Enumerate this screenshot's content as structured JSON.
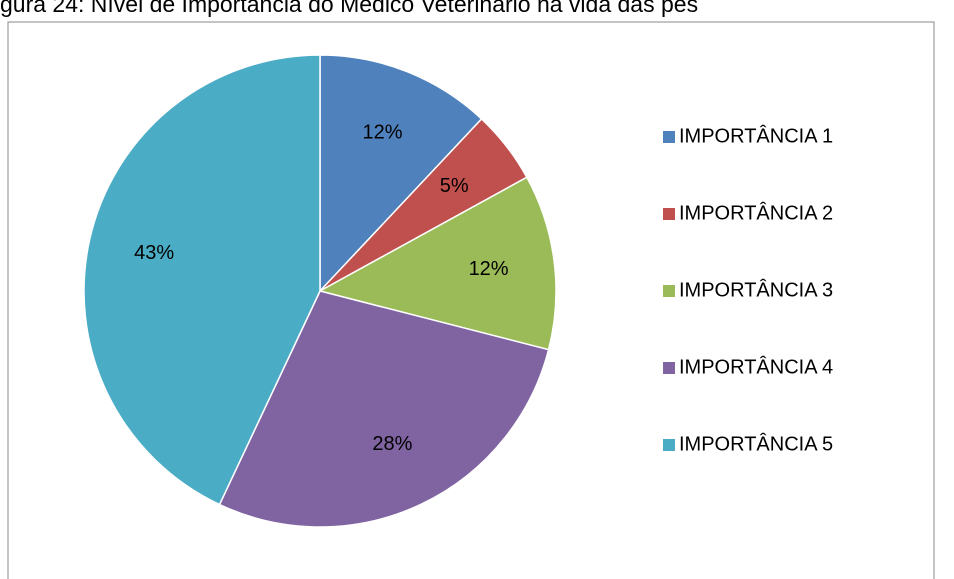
{
  "chart_data": {
    "type": "pie",
    "title": "gura 24: Nível de Importância do Médico Veterinário na vida das pes",
    "categories": [
      "IMPORTÂNCIA 1",
      "IMPORTÂNCIA 2",
      "IMPORTÂNCIA 3",
      "IMPORTÂNCIA 4",
      "IMPORTÂNCIA 5"
    ],
    "values": [
      12,
      5,
      12,
      28,
      43
    ],
    "value_labels": [
      "12%",
      "5%",
      "12%",
      "28%",
      "43%"
    ],
    "colors": [
      "#4f81bd",
      "#c0504d",
      "#9bbb59",
      "#8064a2",
      "#4bacc6"
    ],
    "legend": "right"
  }
}
